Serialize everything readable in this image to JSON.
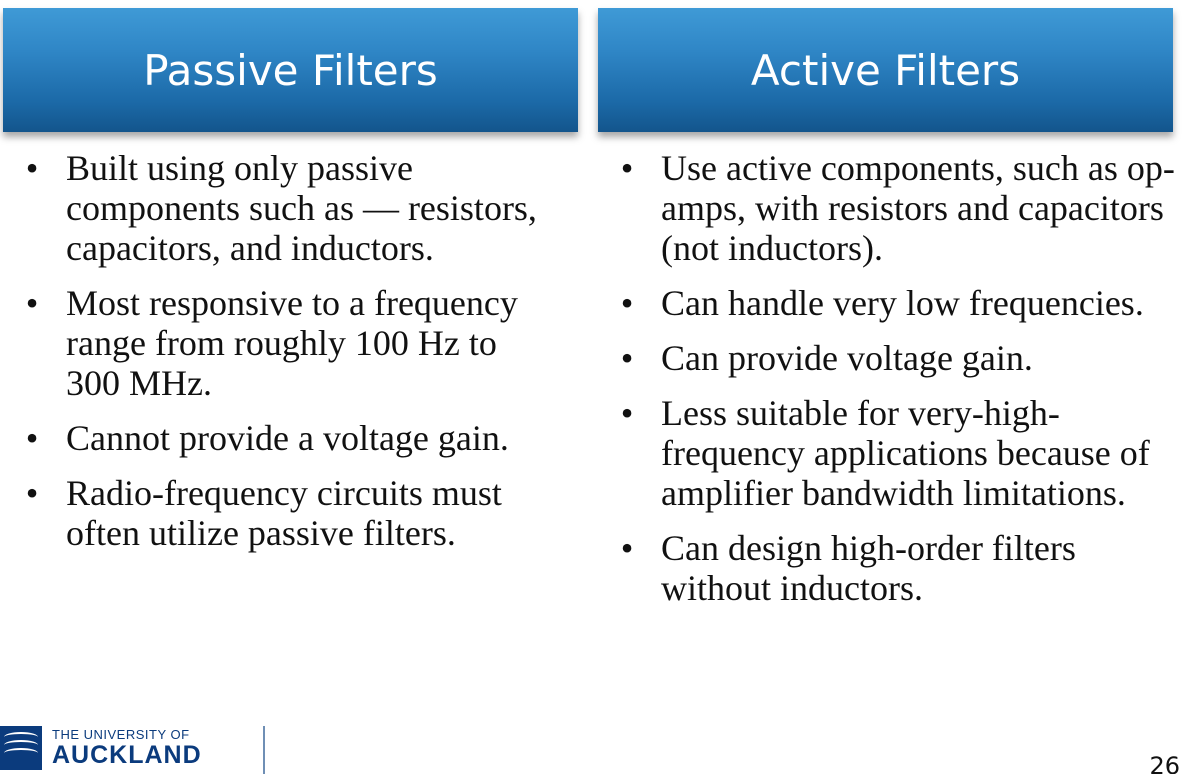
{
  "left": {
    "title": "Passive Filters",
    "bullets": [
      "Built using only passive components such as — resistors, capacitors, and inductors.",
      "Most responsive to a frequency range from roughly 100 Hz to 300 MHz.",
      "Cannot provide a voltage gain.",
      "Radio-frequency circuits must often utilize passive filters."
    ]
  },
  "right": {
    "title": "Active Filters",
    "bullets": [
      "Use active components, such as op-amps, with resistors and capacitors (not inductors).",
      "Can handle very low frequencies.",
      "Can provide voltage gain.",
      "Less suitable for very-high-frequency applications because of amplifier bandwidth limitations.",
      "Can design high-order filters without inductors."
    ]
  },
  "bullet_symbol": "•",
  "logo": {
    "line1": "THE UNIVERSITY OF",
    "line2": "AUCKLAND"
  },
  "page_number": "26",
  "colors": {
    "header_top": "#3f9ad6",
    "header_bottom": "#13558c",
    "logo_blue": "#0b3b7d"
  }
}
